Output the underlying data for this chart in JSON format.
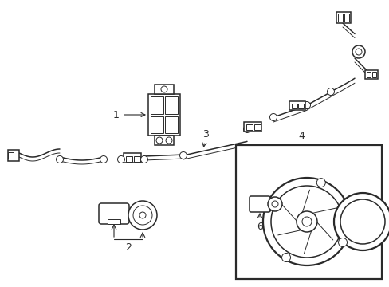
{
  "background_color": "#ffffff",
  "line_color": "#2a2a2a",
  "fig_width": 4.89,
  "fig_height": 3.6,
  "dpi": 100,
  "lw": 1.1,
  "lw_thin": 0.7,
  "lw_thick": 1.6
}
